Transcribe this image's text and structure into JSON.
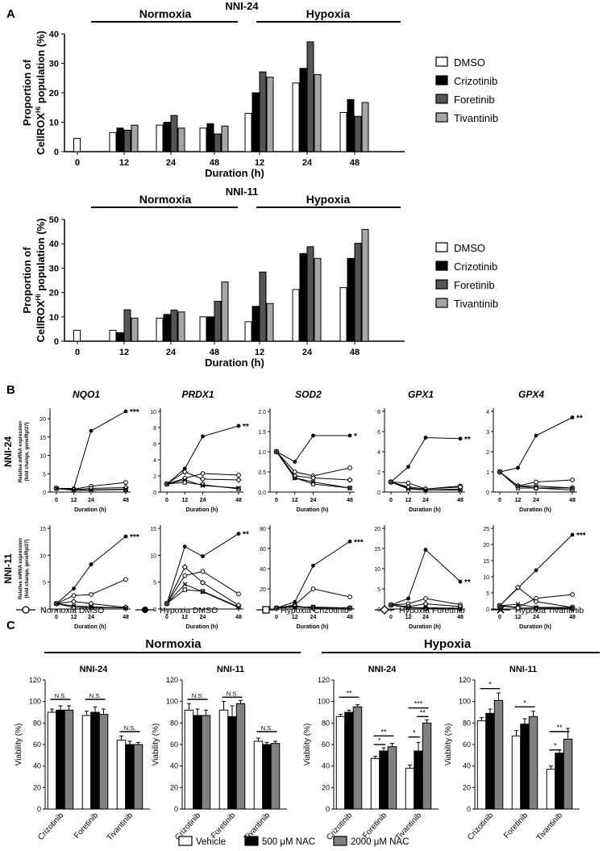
{
  "panels": {
    "a": "A",
    "b": "B",
    "c": "C"
  },
  "chart_data": [
    {
      "type": "bar",
      "id": "a1",
      "title": "NNI-24",
      "categories": [
        "0",
        "12",
        "24",
        "48",
        "12",
        "24",
        "48"
      ],
      "conditions": [
        "Normoxia",
        "Hypoxia"
      ],
      "ylabel_line1": "Proportion of",
      "ylabel_line2": "CellROX",
      "ylabel_sup": "Hi",
      "ylabel_line3": " population (%)",
      "xlabel": "Duration (h)",
      "ylim": [
        0,
        40
      ],
      "yticks": [
        "0",
        "10",
        "20",
        "30",
        "40"
      ],
      "series": [
        {
          "name": "DMSO",
          "color": "#ffffff",
          "values": [
            4.5,
            6.5,
            9,
            8,
            13,
            23.3,
            13.3
          ]
        },
        {
          "name": "Crizotinib",
          "color": "#000000",
          "values": [
            null,
            8,
            10,
            9.5,
            20,
            28.3,
            17.7
          ]
        },
        {
          "name": "Foretinib",
          "color": "#555555",
          "values": [
            null,
            7.3,
            12.3,
            6,
            27.1,
            37.3,
            12
          ]
        },
        {
          "name": "Tivantinib",
          "color": "#a6a6a6",
          "values": [
            null,
            9,
            8,
            8.7,
            25.3,
            26.2,
            16.7
          ]
        }
      ]
    },
    {
      "type": "bar",
      "id": "a2",
      "title": "NNI-11",
      "categories": [
        "0",
        "12",
        "24",
        "48",
        "12",
        "24",
        "48"
      ],
      "conditions": [
        "Normoxia",
        "Hypoxia"
      ],
      "ylabel_line1": "Proportion of",
      "ylabel_line2": "CellROX",
      "ylabel_sup": "Hi",
      "ylabel_line3": " population (%)",
      "xlabel": "Duration (h)",
      "ylim": [
        0,
        50
      ],
      "yticks": [
        "0",
        "10",
        "20",
        "30",
        "40",
        "50"
      ],
      "series": [
        {
          "name": "DMSO",
          "color": "#ffffff",
          "values": [
            4.5,
            4.5,
            9.5,
            10,
            8,
            21.2,
            22
          ]
        },
        {
          "name": "Crizotinib",
          "color": "#000000",
          "values": [
            null,
            3.5,
            11,
            10,
            14.3,
            36,
            34
          ]
        },
        {
          "name": "Foretinib",
          "color": "#555555",
          "values": [
            null,
            12.9,
            12.8,
            16.4,
            28.4,
            38.8,
            40.2
          ]
        },
        {
          "name": "Tivantinib",
          "color": "#a6a6a6",
          "values": [
            null,
            9.5,
            12,
            24.3,
            15.5,
            34,
            45.9
          ]
        }
      ]
    },
    {
      "type": "line",
      "id": "b",
      "row_labels": [
        "NNI-24",
        "NNI-11"
      ],
      "genes": [
        "NQO1",
        "PRDX1",
        "SOD2",
        "GPX1",
        "GPX4"
      ],
      "ylabel": "Relative mRNA expression",
      "ylabel2": "(fold change, gene/Rpl27)",
      "xlabel": "Duration (h)",
      "x": [
        0,
        12,
        24,
        48
      ],
      "legend": [
        {
          "name": "Normoxia DMSO",
          "marker": "open-circle"
        },
        {
          "name": "Hypoxia DMSO",
          "marker": "filled-circle"
        },
        {
          "name": "Hypoxia Crizotinib",
          "marker": "open-square"
        },
        {
          "name": "Hypoxia Foretinib",
          "marker": "open-diamond"
        },
        {
          "name": "Hypoxia Tivantinib",
          "marker": "cross"
        }
      ],
      "plots": [
        {
          "gene": "NQO1",
          "cell": "NNI-24",
          "ylim": [
            0,
            22
          ],
          "yticks": [
            "0",
            "5",
            "10",
            "15",
            "20"
          ],
          "sig": "***",
          "series": [
            [
              1,
              0.8,
              1.6,
              2.6
            ],
            [
              1,
              1,
              16.7,
              22
            ],
            [
              1,
              0.5,
              0.5,
              0.7
            ],
            [
              1,
              0.6,
              1,
              1.2
            ],
            [
              1,
              0.5,
              0.6,
              0.8
            ]
          ]
        },
        {
          "gene": "PRDX1",
          "cell": "NNI-24",
          "ylim": [
            0,
            10
          ],
          "yticks": [
            "0",
            "2",
            "4",
            "6",
            "8",
            "10"
          ],
          "sig": "**",
          "series": [
            [
              1,
              1.7,
              2.3,
              2.1
            ],
            [
              1,
              2.9,
              6.9,
              8.2
            ],
            [
              1,
              1.2,
              0.9,
              0.4
            ],
            [
              1,
              2.5,
              1.6,
              1.5
            ],
            [
              1,
              1.5,
              0.8,
              0.5
            ]
          ]
        },
        {
          "gene": "SOD2",
          "cell": "NNI-24",
          "ylim": [
            0,
            2
          ],
          "yticks": [
            "0.0",
            "0.5",
            "1.0",
            "1.5",
            "2.0"
          ],
          "sig": "*",
          "series": [
            [
              1,
              0.5,
              0.4,
              0.6
            ],
            [
              1,
              0.75,
              1.4,
              1.4
            ],
            [
              1,
              0.35,
              0.2,
              0.1
            ],
            [
              1,
              0.4,
              0.35,
              0.3
            ],
            [
              1,
              0.35,
              0.25,
              0.1
            ]
          ]
        },
        {
          "gene": "GPX1",
          "cell": "NNI-24",
          "ylim": [
            0,
            8
          ],
          "yticks": [
            "0",
            "2",
            "4",
            "6",
            "8"
          ],
          "sig": "**",
          "series": [
            [
              1,
              0.9,
              0.3,
              0.6
            ],
            [
              1,
              2.5,
              5.4,
              5.3
            ],
            [
              1,
              0.4,
              0.2,
              0.3
            ],
            [
              1,
              0.5,
              0.3,
              0.5
            ],
            [
              1,
              0.3,
              0.2,
              0.2
            ]
          ]
        },
        {
          "gene": "GPX4",
          "cell": "NNI-24",
          "ylim": [
            0,
            4
          ],
          "yticks": [
            "0",
            "1",
            "2",
            "3",
            "4"
          ],
          "sig": "**",
          "series": [
            [
              1,
              0.3,
              0.5,
              0.6
            ],
            [
              1,
              1.2,
              2.8,
              3.7
            ],
            [
              1,
              0.2,
              0.2,
              0.1
            ],
            [
              1,
              0.3,
              0.2,
              0.2
            ],
            [
              1,
              0.3,
              0.3,
              0.2
            ]
          ]
        },
        {
          "gene": "NQO1",
          "cell": "NNI-11",
          "ylim": [
            0,
            15
          ],
          "yticks": [
            "0",
            "5",
            "10",
            "15"
          ],
          "sig": "***",
          "series": [
            [
              1,
              2.5,
              2.7,
              5.5
            ],
            [
              1,
              3.8,
              8.3,
              13.5
            ],
            [
              1,
              0.3,
              0.3,
              0.2
            ],
            [
              1,
              1.4,
              1,
              0.3
            ],
            [
              1,
              0.6,
              0.4,
              0.2
            ]
          ]
        },
        {
          "gene": "PRDX1",
          "cell": "NNI-11",
          "ylim": [
            0,
            15
          ],
          "yticks": [
            "0",
            "5",
            "10",
            "15"
          ],
          "sig": "**",
          "series": [
            [
              1,
              6.2,
              7,
              2.8
            ],
            [
              1,
              11.6,
              9.8,
              14
            ],
            [
              1,
              3.6,
              3.3,
              0.4
            ],
            [
              1,
              7.8,
              4.9,
              0.7
            ],
            [
              1,
              4.6,
              3.2,
              0.3
            ]
          ]
        },
        {
          "gene": "SOD2",
          "cell": "NNI-11",
          "ylim": [
            0,
            80
          ],
          "yticks": [
            "0",
            "20",
            "40",
            "60",
            "80"
          ],
          "sig": "***",
          "series": [
            [
              1,
              4,
              20,
              12
            ],
            [
              1,
              7,
              43,
              67
            ],
            [
              1,
              2,
              2,
              1
            ],
            [
              1,
              3,
              1,
              1
            ],
            [
              1,
              2,
              1,
              1
            ]
          ]
        },
        {
          "gene": "GPX1",
          "cell": "NNI-11",
          "ylim": [
            0,
            20
          ],
          "yticks": [
            "0",
            "5",
            "10",
            "15",
            "20"
          ],
          "sig": "**",
          "series": [
            [
              1,
              1.3,
              2.6,
              1.1
            ],
            [
              1,
              2.6,
              14.7,
              6.8
            ],
            [
              1,
              0.3,
              0.2,
              0.2
            ],
            [
              1,
              0.6,
              1.3,
              0.6
            ],
            [
              1,
              0.4,
              0.3,
              0.2
            ]
          ]
        },
        {
          "gene": "GPX4",
          "cell": "NNI-11",
          "ylim": [
            0,
            25
          ],
          "yticks": [
            "0",
            "5",
            "10",
            "15",
            "20",
            "25"
          ],
          "sig": "***",
          "series": [
            [
              1,
              0.5,
              3.3,
              4.5
            ],
            [
              1,
              6.5,
              12,
              23
            ],
            [
              1,
              0.3,
              0.3,
              0.2
            ],
            [
              1,
              6.7,
              2.3,
              0.5
            ],
            [
              1,
              1.5,
              0.5,
              0.5
            ]
          ]
        }
      ]
    },
    {
      "type": "bar",
      "id": "c",
      "conditions": [
        "Normoxia",
        "Hypoxia"
      ],
      "ylabel": "Viability (%)",
      "ylim": [
        0,
        120
      ],
      "yticks": [
        "0",
        "20",
        "40",
        "60",
        "80",
        "100",
        "120"
      ],
      "categories": [
        "Crizotinib",
        "Foretinib",
        "Tivantinib"
      ],
      "legend": [
        {
          "name": "Vehicle",
          "color": "#ffffff"
        },
        {
          "name": "500 μM NAC",
          "color": "#000000"
        },
        {
          "name": "2000 μM NAC",
          "color": "#808080"
        }
      ],
      "plots": [
        {
          "title": "NNI-24",
          "condition": "Normoxia",
          "values": [
            [
              90,
              92,
              92
            ],
            [
              87,
              90,
              88
            ],
            [
              64,
              60,
              60
            ]
          ],
          "errors": [
            [
              3,
              4,
              4
            ],
            [
              4,
              5,
              5
            ],
            [
              4,
              3,
              2
            ]
          ],
          "sig": [
            {
              "label": "N.S.",
              "cat": 0,
              "from": 0,
              "to": 2,
              "y": 102
            },
            {
              "label": "N.S.",
              "cat": 1,
              "from": 0,
              "to": 2,
              "y": 102
            },
            {
              "label": "N.S.",
              "cat": 2,
              "from": 0,
              "to": 2,
              "y": 72
            }
          ]
        },
        {
          "title": "NNI-11",
          "condition": "Normoxia",
          "values": [
            [
              92,
              87,
              87
            ],
            [
              92,
              86,
              98
            ],
            [
              63,
              60,
              61
            ]
          ],
          "errors": [
            [
              6,
              6,
              5
            ],
            [
              8,
              10,
              3
            ],
            [
              3,
              2,
              2
            ]
          ],
          "sig": [
            {
              "label": "N.S.",
              "cat": 0,
              "from": 0,
              "to": 2,
              "y": 102
            },
            {
              "label": "N.S.",
              "cat": 1,
              "from": 0,
              "to": 2,
              "y": 104
            },
            {
              "label": "N.S.",
              "cat": 2,
              "from": 0,
              "to": 2,
              "y": 72
            }
          ]
        },
        {
          "title": "NNI-24",
          "condition": "Hypoxia",
          "values": [
            [
              86,
              90,
              95
            ],
            [
              47,
              54,
              58
            ],
            [
              38,
              54,
              80
            ]
          ],
          "errors": [
            [
              2,
              2,
              2
            ],
            [
              2,
              3,
              3
            ],
            [
              3,
              8,
              3
            ]
          ],
          "sig": [
            {
              "label": "**",
              "cat": 0,
              "from": 0,
              "to": 2,
              "y": 104
            },
            {
              "label": "*",
              "cat": 1,
              "from": 0,
              "to": 1,
              "y": 60
            },
            {
              "label": "**",
              "cat": 1,
              "from": 0,
              "to": 2,
              "y": 68
            },
            {
              "label": "*",
              "cat": 2,
              "from": 0,
              "to": 1,
              "y": 67
            },
            {
              "label": "**",
              "cat": 2,
              "from": 1,
              "to": 2,
              "y": 86
            },
            {
              "label": "***",
              "cat": 2,
              "from": 0,
              "to": 2,
              "y": 94
            }
          ]
        },
        {
          "title": "NNI-11",
          "condition": "Hypoxia",
          "values": [
            [
              82,
              89,
              101
            ],
            [
              68,
              79,
              86
            ],
            [
              37,
              52,
              65
            ]
          ],
          "errors": [
            [
              3,
              4,
              7
            ],
            [
              5,
              5,
              5
            ],
            [
              3,
              3,
              10
            ]
          ],
          "sig": [
            {
              "label": "*",
              "cat": 0,
              "from": 0,
              "to": 2,
              "y": 112
            },
            {
              "label": "*",
              "cat": 1,
              "from": 0,
              "to": 2,
              "y": 95
            },
            {
              "label": "*",
              "cat": 2,
              "from": 0,
              "to": 1,
              "y": 55
            },
            {
              "label": "**",
              "cat": 2,
              "from": 0,
              "to": 2,
              "y": 72
            }
          ]
        }
      ]
    }
  ]
}
